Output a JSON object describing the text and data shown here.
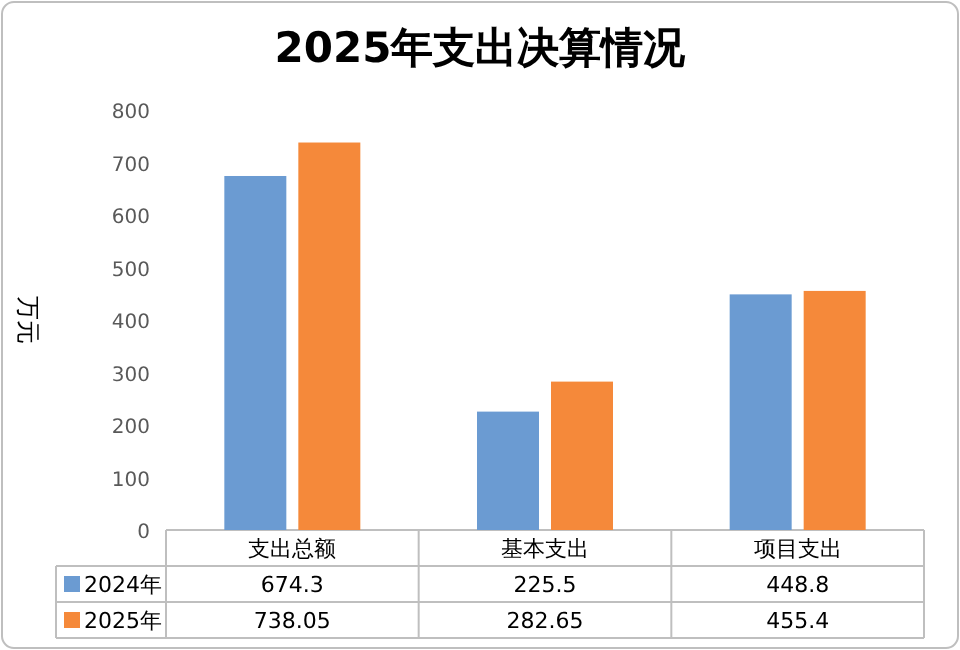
{
  "chart_data": {
    "type": "bar",
    "title": "2025年支出决算情况",
    "ylabel": "万元",
    "categories": [
      "支出总额",
      "基本支出",
      "项目支出"
    ],
    "series": [
      {
        "name": "2024年",
        "color": "#6b9bd2",
        "values": [
          674.3,
          225.5,
          448.8
        ]
      },
      {
        "name": "2025年",
        "color": "#f5893a",
        "values": [
          738.05,
          282.65,
          455.4
        ]
      }
    ],
    "ylim": [
      0,
      800
    ],
    "yticks": [
      0,
      100,
      200,
      300,
      400,
      500,
      600,
      700,
      800
    ],
    "data_labels": true,
    "legend": "bottom"
  }
}
